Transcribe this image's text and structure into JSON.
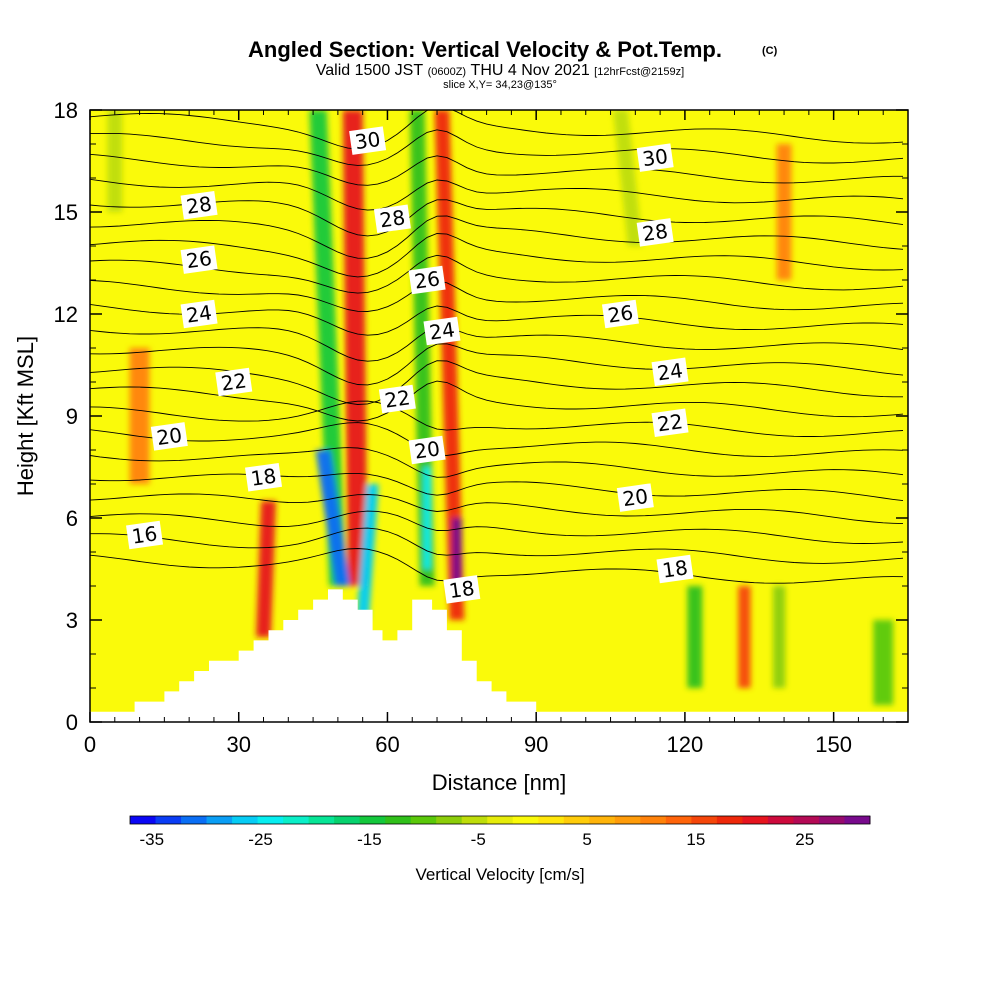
{
  "header": {
    "title_main": "Angled Section: Vertical Velocity & Pot.Temp.",
    "title_mark": "(C)",
    "valid_prefix": "Valid 1500 JST",
    "valid_zulu": "(0600Z)",
    "valid_date": "THU 4 Nov 2021",
    "valid_fcst": "[12hrFcst@2159z]",
    "slice": "slice X,Y= 34,23@135°"
  },
  "colorbar": {
    "label": "Vertical Velocity [cm/s]",
    "tick_labels": [
      "-35",
      "-25",
      "-15",
      "-5",
      "5",
      "15",
      "25"
    ],
    "tick_values": [
      -35,
      -25,
      -15,
      -5,
      5,
      15,
      25
    ],
    "range": [
      -37,
      31
    ],
    "colors": [
      "#0a06f5",
      "#0a3cf5",
      "#0a6ef5",
      "#0a9ef5",
      "#06ccf5",
      "#06eef0",
      "#0aefc8",
      "#06e596",
      "#06d26e",
      "#14c83c",
      "#30c01a",
      "#5ac80a",
      "#8ccd0a",
      "#bedd0a",
      "#e6ec0a",
      "#fafa0a",
      "#ffe60a",
      "#ffcc0a",
      "#ffb40a",
      "#ff9c0a",
      "#ff820a",
      "#ff640a",
      "#f5460a",
      "#ee280a",
      "#e6141e",
      "#cd0a3c",
      "#b40a55",
      "#960a6e",
      "#780a8c"
    ]
  },
  "chart_data": {
    "type": "heatmap",
    "title": "Angled Section: Vertical Velocity & Pot.Temp.",
    "xlabel": "Distance [nm]",
    "ylabel": "Height [Kft MSL]",
    "xlim": [
      0,
      165
    ],
    "ylim": [
      0,
      18
    ],
    "x_ticks": [
      0,
      30,
      60,
      90,
      120,
      150
    ],
    "x_tick_labels": [
      "0",
      "30",
      "60",
      "90",
      "120",
      "150"
    ],
    "y_ticks": [
      0,
      3,
      6,
      9,
      12,
      15,
      18
    ],
    "y_tick_labels": [
      "0",
      "3",
      "6",
      "9",
      "12",
      "15",
      "18"
    ],
    "shaded_field": "Vertical Velocity [cm/s]",
    "background_value": 5,
    "vertical_velocity_features": [
      {
        "x0": 53,
        "y0": 18,
        "x1": 54,
        "y1": 4.0,
        "value": 20,
        "width_nm": 4
      },
      {
        "x0": 46,
        "y0": 18,
        "x1": 50,
        "y1": 4.0,
        "value": -14,
        "width_nm": 3.5
      },
      {
        "x0": 47,
        "y0": 8,
        "x1": 51,
        "y1": 4.0,
        "value": -32,
        "width_nm": 3
      },
      {
        "x0": 57,
        "y0": 7,
        "x1": 55,
        "y1": 3.0,
        "value": -26,
        "width_nm": 2.5
      },
      {
        "x0": 36,
        "y0": 6.5,
        "x1": 35,
        "y1": 2.5,
        "value": 20,
        "width_nm": 3
      },
      {
        "x0": 71,
        "y0": 18,
        "x1": 74,
        "y1": 3.0,
        "value": 18,
        "width_nm": 3
      },
      {
        "x0": 66,
        "y0": 18,
        "x1": 68,
        "y1": 4.0,
        "value": -13,
        "width_nm": 3
      },
      {
        "x0": 68,
        "y0": 7.5,
        "x1": 68,
        "y1": 4.5,
        "value": -24,
        "width_nm": 1.5
      },
      {
        "x0": 74,
        "y0": 6,
        "x1": 74,
        "y1": 4.0,
        "value": 31,
        "width_nm": 2
      },
      {
        "x0": 122,
        "y0": 4,
        "x1": 122,
        "y1": 1.0,
        "value": -12,
        "width_nm": 3
      },
      {
        "x0": 132,
        "y0": 4,
        "x1": 132,
        "y1": 1.0,
        "value": 15,
        "width_nm": 2.5
      },
      {
        "x0": 139,
        "y0": 4,
        "x1": 139,
        "y1": 1.0,
        "value": -8,
        "width_nm": 2.5
      },
      {
        "x0": 160,
        "y0": 3,
        "x1": 160,
        "y1": 0.5,
        "value": -10,
        "width_nm": 4
      },
      {
        "x0": 107,
        "y0": 18,
        "x1": 110,
        "y1": 14,
        "value": -5,
        "width_nm": 3
      },
      {
        "x0": 5,
        "y0": 18,
        "x1": 5,
        "y1": 15,
        "value": -5,
        "width_nm": 3
      },
      {
        "x0": 140,
        "y0": 17,
        "x1": 140,
        "y1": 13,
        "value": 10,
        "width_nm": 3
      },
      {
        "x0": 10,
        "y0": 11,
        "x1": 10,
        "y1": 7,
        "value": 10,
        "width_nm": 4
      }
    ],
    "terrain_profile": [
      [
        0,
        0.3
      ],
      [
        9,
        0.3
      ],
      [
        9,
        0.6
      ],
      [
        15,
        0.6
      ],
      [
        15,
        0.9
      ],
      [
        18,
        0.9
      ],
      [
        18,
        1.2
      ],
      [
        21,
        1.2
      ],
      [
        21,
        1.5
      ],
      [
        24,
        1.5
      ],
      [
        24,
        1.8
      ],
      [
        30,
        1.8
      ],
      [
        30,
        2.1
      ],
      [
        33,
        2.1
      ],
      [
        33,
        2.4
      ],
      [
        36,
        2.4
      ],
      [
        36,
        2.7
      ],
      [
        39,
        2.7
      ],
      [
        39,
        3.0
      ],
      [
        42,
        3.0
      ],
      [
        42,
        3.3
      ],
      [
        45,
        3.3
      ],
      [
        45,
        3.6
      ],
      [
        48,
        3.6
      ],
      [
        48,
        3.9
      ],
      [
        51,
        3.9
      ],
      [
        51,
        3.6
      ],
      [
        54,
        3.6
      ],
      [
        54,
        3.3
      ],
      [
        57,
        3.3
      ],
      [
        57,
        2.7
      ],
      [
        59,
        2.7
      ],
      [
        59,
        2.4
      ],
      [
        62,
        2.4
      ],
      [
        62,
        2.7
      ],
      [
        65,
        2.7
      ],
      [
        65,
        3.6
      ],
      [
        69,
        3.6
      ],
      [
        69,
        3.3
      ],
      [
        72,
        3.3
      ],
      [
        72,
        2.7
      ],
      [
        75,
        2.7
      ],
      [
        75,
        1.8
      ],
      [
        78,
        1.8
      ],
      [
        78,
        1.2
      ],
      [
        81,
        1.2
      ],
      [
        81,
        0.9
      ],
      [
        84,
        0.9
      ],
      [
        84,
        0.6
      ],
      [
        90,
        0.6
      ],
      [
        90,
        0.3
      ],
      [
        165,
        0.3
      ]
    ],
    "contour_field": "Pot.Temp. (C)",
    "contour_levels": [
      16,
      18,
      20,
      22,
      24,
      26,
      28,
      30
    ],
    "contour_labels": [
      {
        "text": "30",
        "x": 56,
        "y": 17.1
      },
      {
        "text": "30",
        "x": 114,
        "y": 16.6
      },
      {
        "text": "28",
        "x": 22,
        "y": 15.2
      },
      {
        "text": "28",
        "x": 61,
        "y": 14.8
      },
      {
        "text": "28",
        "x": 114,
        "y": 14.4
      },
      {
        "text": "26",
        "x": 22,
        "y": 13.6
      },
      {
        "text": "26",
        "x": 68,
        "y": 13.0
      },
      {
        "text": "26",
        "x": 107,
        "y": 12.0
      },
      {
        "text": "24",
        "x": 22,
        "y": 12.0
      },
      {
        "text": "24",
        "x": 71,
        "y": 11.5
      },
      {
        "text": "24",
        "x": 117,
        "y": 10.3
      },
      {
        "text": "22",
        "x": 29,
        "y": 10.0
      },
      {
        "text": "22",
        "x": 62,
        "y": 9.5
      },
      {
        "text": "22",
        "x": 117,
        "y": 8.8
      },
      {
        "text": "20",
        "x": 16,
        "y": 8.4
      },
      {
        "text": "20",
        "x": 68,
        "y": 8.0
      },
      {
        "text": "20",
        "x": 110,
        "y": 6.6
      },
      {
        "text": "18",
        "x": 35,
        "y": 7.2
      },
      {
        "text": "18",
        "x": 75,
        "y": 3.9
      },
      {
        "text": "18",
        "x": 118,
        "y": 4.5
      },
      {
        "text": "16",
        "x": 11,
        "y": 5.5
      }
    ],
    "contour_count": 22
  }
}
